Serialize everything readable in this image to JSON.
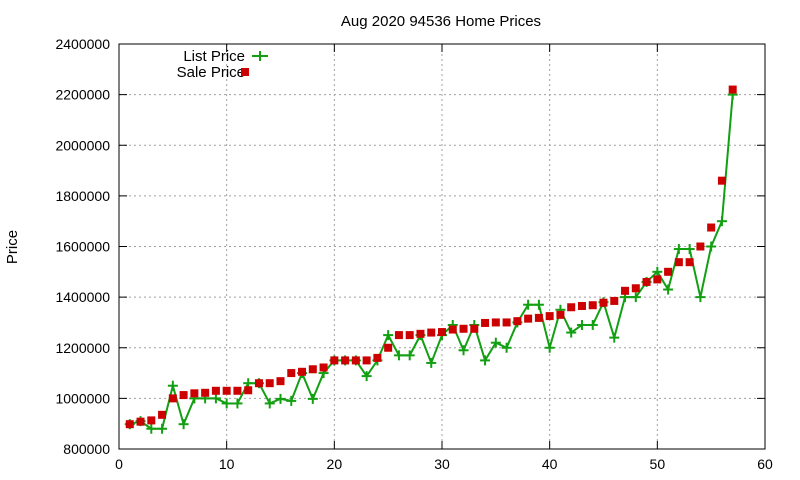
{
  "chart_data": {
    "type": "line",
    "title": "Aug 2020 94536 Home Prices",
    "xlabel": "",
    "ylabel": "Price",
    "xlim": [
      0,
      60
    ],
    "ylim": [
      800000,
      2400000
    ],
    "xticks": [
      0,
      10,
      20,
      30,
      40,
      50,
      60
    ],
    "yticks": [
      800000,
      1000000,
      1200000,
      1400000,
      1600000,
      1800000,
      2000000,
      2200000,
      2400000
    ],
    "grid": true,
    "legend": "top-left",
    "series": [
      {
        "name": "List Price",
        "style": "line-with-plus-markers",
        "color": "#12a012",
        "x": [
          1,
          2,
          3,
          4,
          5,
          6,
          7,
          8,
          9,
          10,
          11,
          12,
          13,
          14,
          15,
          16,
          17,
          18,
          19,
          20,
          21,
          22,
          23,
          24,
          25,
          26,
          27,
          28,
          29,
          30,
          31,
          32,
          33,
          34,
          35,
          36,
          37,
          38,
          39,
          40,
          41,
          42,
          43,
          44,
          45,
          46,
          47,
          48,
          49,
          50,
          51,
          52,
          53,
          54,
          55,
          56,
          57
        ],
        "values": [
          898000,
          910000,
          880000,
          880000,
          1050000,
          898000,
          1000000,
          1000000,
          1000000,
          980000,
          980000,
          1060000,
          1060000,
          980000,
          998000,
          990000,
          1100000,
          998000,
          1100000,
          1150000,
          1150000,
          1150000,
          1088000,
          1150000,
          1250000,
          1170000,
          1170000,
          1250000,
          1140000,
          1250000,
          1290000,
          1190000,
          1290000,
          1150000,
          1220000,
          1200000,
          1300000,
          1370000,
          1370000,
          1200000,
          1350000,
          1260000,
          1290000,
          1290000,
          1380000,
          1240000,
          1400000,
          1400000,
          1460000,
          1500000,
          1430000,
          1590000,
          1590000,
          1400000,
          1600000,
          1700000,
          2200000
        ]
      },
      {
        "name": "Sale Price",
        "style": "square-markers",
        "color": "#cc0000",
        "x": [
          1,
          2,
          3,
          4,
          5,
          6,
          7,
          8,
          9,
          10,
          11,
          12,
          13,
          14,
          15,
          16,
          17,
          18,
          19,
          20,
          21,
          22,
          23,
          24,
          25,
          26,
          27,
          28,
          29,
          30,
          31,
          32,
          33,
          34,
          35,
          36,
          37,
          38,
          39,
          40,
          41,
          42,
          43,
          44,
          45,
          46,
          47,
          48,
          49,
          50,
          51,
          52,
          53,
          54,
          55,
          56,
          57
        ],
        "values": [
          898000,
          908000,
          913000,
          935000,
          1000000,
          1013000,
          1020000,
          1022000,
          1030000,
          1030000,
          1030000,
          1032000,
          1060000,
          1060000,
          1068000,
          1100000,
          1105000,
          1115000,
          1122000,
          1150000,
          1150000,
          1150000,
          1150000,
          1160000,
          1200000,
          1250000,
          1250000,
          1255000,
          1260000,
          1262000,
          1272000,
          1275000,
          1275000,
          1298000,
          1300000,
          1300000,
          1305000,
          1315000,
          1318000,
          1325000,
          1330000,
          1360000,
          1365000,
          1368000,
          1378000,
          1385000,
          1425000,
          1435000,
          1460000,
          1470000,
          1500000,
          1538000,
          1538000,
          1600000,
          1675000,
          1860000,
          2220000
        ]
      }
    ]
  }
}
